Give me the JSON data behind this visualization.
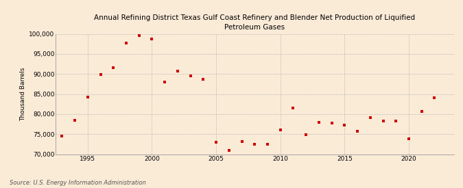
{
  "title": "Annual Refining District Texas Gulf Coast Refinery and Blender Net Production of Liquified\nPetroleum Gases",
  "ylabel": "Thousand Barrels",
  "source": "Source: U.S. Energy Information Administration",
  "background_color": "#faebd7",
  "plot_background": "#faebd7",
  "marker_color": "#cc0000",
  "marker_size": 9,
  "ylim": [
    70000,
    100000
  ],
  "yticks": [
    70000,
    75000,
    80000,
    85000,
    90000,
    95000,
    100000
  ],
  "xlim": [
    1992.5,
    2023.5
  ],
  "xticks": [
    1995,
    2000,
    2005,
    2010,
    2015,
    2020
  ],
  "years": [
    1993,
    1994,
    1995,
    1996,
    1997,
    1998,
    1999,
    2000,
    2001,
    2002,
    2003,
    2004,
    2005,
    2006,
    2007,
    2008,
    2009,
    2010,
    2011,
    2012,
    2013,
    2014,
    2015,
    2016,
    2017,
    2018,
    2019,
    2020,
    2021,
    2022
  ],
  "values": [
    74500,
    78500,
    84200,
    89900,
    91500,
    97700,
    99500,
    98800,
    88000,
    90700,
    89500,
    88700,
    73000,
    71000,
    73200,
    72500,
    72400,
    76000,
    81500,
    74900,
    78000,
    77700,
    77300,
    75700,
    79100,
    78300,
    78200,
    73800,
    80600,
    84000
  ]
}
